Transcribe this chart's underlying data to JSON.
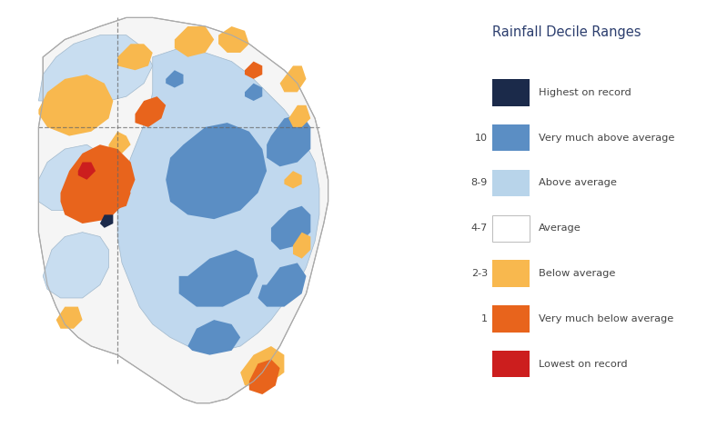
{
  "title": "Rainfall Decile Ranges",
  "background_color": "#ffffff",
  "legend_items": [
    {
      "label": "Highest on record",
      "color": "#1b2a4a",
      "decile": ""
    },
    {
      "label": "Very much above average",
      "color": "#5b8ec4",
      "decile": "10"
    },
    {
      "label": "Above average",
      "color": "#b8d4ea",
      "decile": "8-9"
    },
    {
      "label": "Average",
      "color": "#ffffff",
      "decile": "4-7"
    },
    {
      "label": "Below average",
      "color": "#f8b84e",
      "decile": "2-3"
    },
    {
      "label": "Very much below average",
      "color": "#e8641c",
      "decile": "1"
    },
    {
      "label": "Lowest on record",
      "color": "#cc1e1e",
      "decile": ""
    }
  ],
  "legend_title_color": "#2c3e6e",
  "legend_label_color": "#444444",
  "fig_width": 7.77,
  "fig_height": 4.92,
  "dpi": 100
}
